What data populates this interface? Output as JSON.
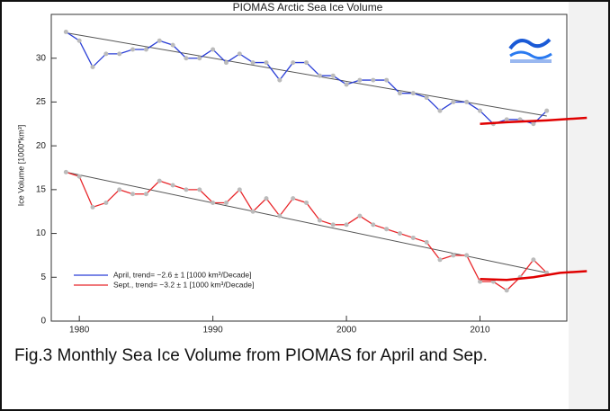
{
  "chart_data": {
    "type": "line",
    "title": "PIOMAS Arctic Sea Ice Volume",
    "y_label": "Ice Volume [1000*km³]",
    "x": [
      1979,
      1980,
      1981,
      1982,
      1983,
      1984,
      1985,
      1986,
      1987,
      1988,
      1989,
      1990,
      1991,
      1992,
      1993,
      1994,
      1995,
      1996,
      1997,
      1998,
      1999,
      2000,
      2001,
      2002,
      2003,
      2004,
      2005,
      2006,
      2007,
      2008,
      2009,
      2010,
      2011,
      2012,
      2013,
      2014,
      2015
    ],
    "series": [
      {
        "name": "April, trend= −2.6 ± 1 [1000 km³/Decade]",
        "color": "#2b3fd6",
        "values": [
          33,
          32,
          29,
          30.5,
          30.5,
          31,
          31,
          32,
          31.5,
          30,
          30,
          31,
          29.5,
          30.5,
          29.5,
          29.5,
          27.5,
          29.5,
          29.5,
          28,
          28,
          27,
          27.5,
          27.5,
          27.5,
          26,
          26,
          25.5,
          24,
          25,
          25,
          24,
          22.5,
          23,
          23,
          22.5,
          24
        ]
      },
      {
        "name": "Sept., trend= −3.2 ± 1 [1000 km³/Decade]",
        "color": "#e8262a",
        "values": [
          17,
          16.5,
          13,
          13.5,
          15,
          14.5,
          14.5,
          16,
          15.5,
          15,
          15,
          13.5,
          13.5,
          15,
          12.5,
          14,
          12,
          14,
          13.5,
          11.5,
          11,
          11,
          12,
          11,
          10.5,
          10,
          9.5,
          9,
          7,
          7.5,
          7.5,
          4.5,
          4.5,
          3.5,
          5,
          7,
          5.5
        ]
      }
    ],
    "trends": [
      {
        "x": [
          1979,
          2015
        ],
        "values": [
          32.9,
          23.4
        ],
        "color": "#555555"
      },
      {
        "x": [
          1979,
          2015
        ],
        "values": [
          17,
          5.5
        ],
        "color": "#555555"
      }
    ],
    "projections": [
      {
        "x": [
          2010,
          2012,
          2015,
          2018
        ],
        "values": [
          22.5,
          22.7,
          22.9,
          23.2
        ],
        "color": "#e00000"
      },
      {
        "x": [
          2010,
          2012,
          2014,
          2016,
          2018
        ],
        "values": [
          4.8,
          4.7,
          5.0,
          5.5,
          5.7
        ],
        "color": "#e00000"
      }
    ],
    "xlim": [
      1977.9,
      2016.5
    ],
    "xticks": [
      1980,
      1990,
      2000,
      2010
    ],
    "ylim": [
      0,
      35
    ],
    "yticks": [
      0,
      5,
      10,
      15,
      20,
      25,
      30
    ]
  },
  "caption": "Fig.3 Monthly Sea Ice Volume from PIOMAS for April and Sep."
}
